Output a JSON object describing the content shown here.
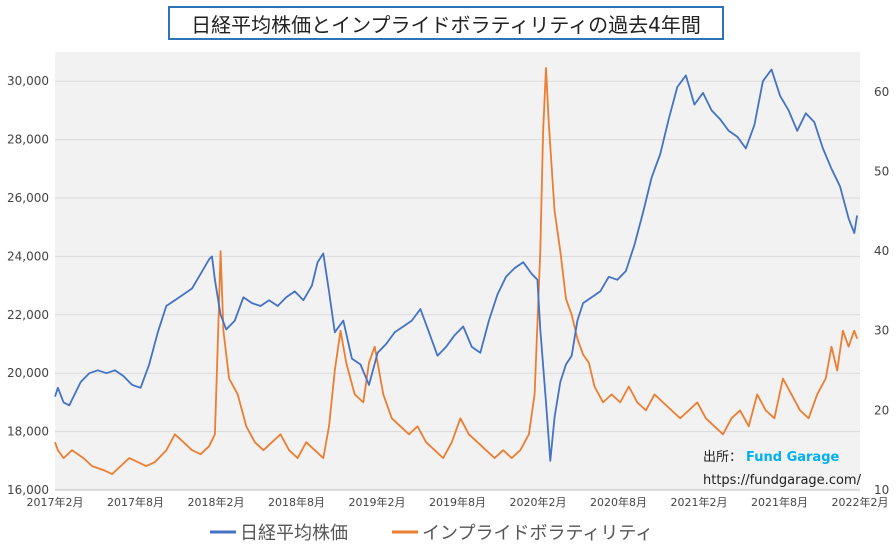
{
  "chart_data": {
    "type": "line",
    "title": "日経平均株価とインプライドボラティリティの過去4年間",
    "x_labels": [
      "2017年2月",
      "2017年8月",
      "2018年2月",
      "2018年8月",
      "2019年2月",
      "2019年8月",
      "2020年2月",
      "2020年8月",
      "2021年2月",
      "2021年8月",
      "2022年2月"
    ],
    "y_left": {
      "ylim": [
        16000,
        31000
      ],
      "ticks": [
        "16,000",
        "18,000",
        "20,000",
        "22,000",
        "24,000",
        "26,000",
        "28,000",
        "30,000"
      ]
    },
    "y_right": {
      "ylim": [
        10,
        65
      ],
      "ticks": [
        "10",
        "20",
        "30",
        "40",
        "50",
        "60"
      ]
    },
    "series": [
      {
        "name": "日経平均株価",
        "axis": "left",
        "color": "#4472c4",
        "points": [
          [
            0,
            19200
          ],
          [
            0.1,
            19500
          ],
          [
            0.3,
            19000
          ],
          [
            0.5,
            18900
          ],
          [
            0.7,
            19300
          ],
          [
            0.9,
            19700
          ],
          [
            1.2,
            20000
          ],
          [
            1.5,
            20100
          ],
          [
            1.8,
            20000
          ],
          [
            2.1,
            20100
          ],
          [
            2.4,
            19900
          ],
          [
            2.7,
            19600
          ],
          [
            3.0,
            19500
          ],
          [
            3.3,
            20300
          ],
          [
            3.6,
            21400
          ],
          [
            3.9,
            22300
          ],
          [
            4.2,
            22500
          ],
          [
            4.5,
            22700
          ],
          [
            4.8,
            22900
          ],
          [
            5.1,
            23400
          ],
          [
            5.4,
            23900
          ],
          [
            5.5,
            24000
          ],
          [
            5.6,
            23200
          ],
          [
            5.8,
            22000
          ],
          [
            6.0,
            21500
          ],
          [
            6.3,
            21800
          ],
          [
            6.6,
            22600
          ],
          [
            6.9,
            22400
          ],
          [
            7.2,
            22300
          ],
          [
            7.5,
            22500
          ],
          [
            7.8,
            22300
          ],
          [
            8.1,
            22600
          ],
          [
            8.4,
            22800
          ],
          [
            8.7,
            22500
          ],
          [
            9.0,
            23000
          ],
          [
            9.2,
            23800
          ],
          [
            9.4,
            24100
          ],
          [
            9.6,
            22800
          ],
          [
            9.8,
            21400
          ],
          [
            10.1,
            21800
          ],
          [
            10.4,
            20500
          ],
          [
            10.7,
            20300
          ],
          [
            11.0,
            19600
          ],
          [
            11.3,
            20700
          ],
          [
            11.6,
            21000
          ],
          [
            11.9,
            21400
          ],
          [
            12.2,
            21600
          ],
          [
            12.5,
            21800
          ],
          [
            12.8,
            22200
          ],
          [
            13.1,
            21400
          ],
          [
            13.4,
            20600
          ],
          [
            13.7,
            20900
          ],
          [
            14.0,
            21300
          ],
          [
            14.3,
            21600
          ],
          [
            14.6,
            20900
          ],
          [
            14.9,
            20700
          ],
          [
            15.2,
            21800
          ],
          [
            15.5,
            22700
          ],
          [
            15.8,
            23300
          ],
          [
            16.1,
            23600
          ],
          [
            16.4,
            23800
          ],
          [
            16.7,
            23400
          ],
          [
            16.9,
            23200
          ],
          [
            17.0,
            21500
          ],
          [
            17.2,
            19000
          ],
          [
            17.35,
            17000
          ],
          [
            17.5,
            18500
          ],
          [
            17.7,
            19700
          ],
          [
            17.9,
            20300
          ],
          [
            18.1,
            20600
          ],
          [
            18.3,
            21800
          ],
          [
            18.5,
            22400
          ],
          [
            18.8,
            22600
          ],
          [
            19.1,
            22800
          ],
          [
            19.4,
            23300
          ],
          [
            19.7,
            23200
          ],
          [
            20.0,
            23500
          ],
          [
            20.3,
            24400
          ],
          [
            20.6,
            25500
          ],
          [
            20.9,
            26700
          ],
          [
            21.2,
            27500
          ],
          [
            21.5,
            28700
          ],
          [
            21.8,
            29800
          ],
          [
            22.1,
            30200
          ],
          [
            22.4,
            29200
          ],
          [
            22.7,
            29600
          ],
          [
            23.0,
            29000
          ],
          [
            23.3,
            28700
          ],
          [
            23.6,
            28300
          ],
          [
            23.9,
            28100
          ],
          [
            24.2,
            27700
          ],
          [
            24.5,
            28500
          ],
          [
            24.8,
            30000
          ],
          [
            25.1,
            30400
          ],
          [
            25.4,
            29500
          ],
          [
            25.7,
            29000
          ],
          [
            26.0,
            28300
          ],
          [
            26.3,
            28900
          ],
          [
            26.6,
            28600
          ],
          [
            26.9,
            27700
          ],
          [
            27.2,
            27000
          ],
          [
            27.5,
            26400
          ],
          [
            27.8,
            25300
          ],
          [
            28.0,
            24800
          ],
          [
            28.1,
            25400
          ]
        ]
      },
      {
        "name": "インプライドボラティリティ",
        "axis": "right",
        "color": "#ed7d31",
        "points": [
          [
            0,
            16
          ],
          [
            0.1,
            15
          ],
          [
            0.3,
            14
          ],
          [
            0.6,
            15
          ],
          [
            1.0,
            14
          ],
          [
            1.3,
            13
          ],
          [
            1.7,
            12.5
          ],
          [
            2.0,
            12
          ],
          [
            2.3,
            13
          ],
          [
            2.6,
            14
          ],
          [
            2.9,
            13.5
          ],
          [
            3.2,
            13
          ],
          [
            3.5,
            13.5
          ],
          [
            3.9,
            15
          ],
          [
            4.2,
            17
          ],
          [
            4.5,
            16
          ],
          [
            4.8,
            15
          ],
          [
            5.1,
            14.5
          ],
          [
            5.4,
            15.5
          ],
          [
            5.6,
            17
          ],
          [
            5.7,
            28
          ],
          [
            5.8,
            40
          ],
          [
            5.9,
            30
          ],
          [
            6.1,
            24
          ],
          [
            6.4,
            22
          ],
          [
            6.7,
            18
          ],
          [
            7.0,
            16
          ],
          [
            7.3,
            15
          ],
          [
            7.6,
            16
          ],
          [
            7.9,
            17
          ],
          [
            8.2,
            15
          ],
          [
            8.5,
            14
          ],
          [
            8.8,
            16
          ],
          [
            9.1,
            15
          ],
          [
            9.4,
            14
          ],
          [
            9.6,
            18
          ],
          [
            9.8,
            25
          ],
          [
            10.0,
            30
          ],
          [
            10.2,
            26
          ],
          [
            10.5,
            22
          ],
          [
            10.8,
            21
          ],
          [
            11.0,
            26
          ],
          [
            11.2,
            28
          ],
          [
            11.5,
            22
          ],
          [
            11.8,
            19
          ],
          [
            12.1,
            18
          ],
          [
            12.4,
            17
          ],
          [
            12.7,
            18
          ],
          [
            13.0,
            16
          ],
          [
            13.3,
            15
          ],
          [
            13.6,
            14
          ],
          [
            13.9,
            16
          ],
          [
            14.2,
            19
          ],
          [
            14.5,
            17
          ],
          [
            14.8,
            16
          ],
          [
            15.1,
            15
          ],
          [
            15.4,
            14
          ],
          [
            15.7,
            15
          ],
          [
            16.0,
            14
          ],
          [
            16.3,
            15
          ],
          [
            16.6,
            17
          ],
          [
            16.8,
            22
          ],
          [
            17.0,
            40
          ],
          [
            17.1,
            55
          ],
          [
            17.2,
            63
          ],
          [
            17.3,
            56
          ],
          [
            17.5,
            45
          ],
          [
            17.7,
            40
          ],
          [
            17.9,
            34
          ],
          [
            18.1,
            32
          ],
          [
            18.3,
            29
          ],
          [
            18.5,
            27
          ],
          [
            18.7,
            26
          ],
          [
            18.9,
            23
          ],
          [
            19.2,
            21
          ],
          [
            19.5,
            22
          ],
          [
            19.8,
            21
          ],
          [
            20.1,
            23
          ],
          [
            20.4,
            21
          ],
          [
            20.7,
            20
          ],
          [
            21.0,
            22
          ],
          [
            21.3,
            21
          ],
          [
            21.6,
            20
          ],
          [
            21.9,
            19
          ],
          [
            22.2,
            20
          ],
          [
            22.5,
            21
          ],
          [
            22.8,
            19
          ],
          [
            23.1,
            18
          ],
          [
            23.4,
            17
          ],
          [
            23.7,
            19
          ],
          [
            24.0,
            20
          ],
          [
            24.3,
            18
          ],
          [
            24.6,
            22
          ],
          [
            24.9,
            20
          ],
          [
            25.2,
            19
          ],
          [
            25.5,
            24
          ],
          [
            25.8,
            22
          ],
          [
            26.1,
            20
          ],
          [
            26.4,
            19
          ],
          [
            26.7,
            22
          ],
          [
            27.0,
            24
          ],
          [
            27.2,
            28
          ],
          [
            27.4,
            25
          ],
          [
            27.6,
            30
          ],
          [
            27.8,
            28
          ],
          [
            28.0,
            30
          ],
          [
            28.1,
            29
          ]
        ]
      }
    ]
  },
  "legend": {
    "items": [
      "日経平均株価",
      "インプライドボラティリティ"
    ]
  },
  "annotation": {
    "source_label": "出所：",
    "source_name": "Fund Garage",
    "url": "https://fundgarage.com/"
  }
}
